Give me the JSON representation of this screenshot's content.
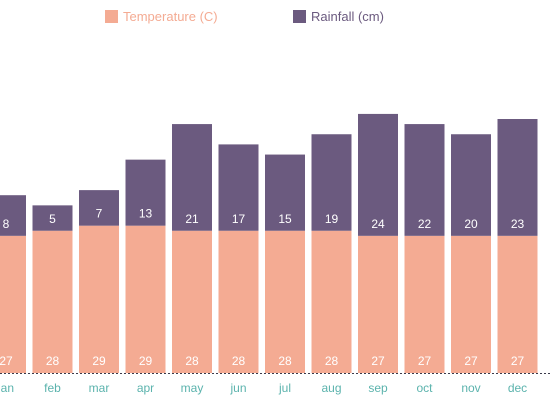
{
  "chart_data": {
    "type": "bar",
    "stacked": true,
    "categories": [
      "jan",
      "feb",
      "mar",
      "apr",
      "may",
      "jun",
      "jul",
      "aug",
      "sep",
      "oct",
      "nov",
      "dec"
    ],
    "series": [
      {
        "name": "Temperature (C)",
        "values": [
          27,
          28,
          29,
          29,
          28,
          28,
          28,
          28,
          27,
          27,
          27,
          27
        ],
        "color": "#f4ab93",
        "legend_text_color": "#f4ab93"
      },
      {
        "name": "Rainfall (cm)",
        "values": [
          8,
          5,
          7,
          13,
          21,
          17,
          15,
          19,
          24,
          22,
          20,
          23
        ],
        "color": "#6b5a7f",
        "legend_text_color": "#6b5a7f"
      }
    ],
    "title": "",
    "xlabel": "",
    "ylabel": "",
    "ylim": [
      0,
      52
    ],
    "grid": false,
    "legend": "top",
    "data_labels": true,
    "tick_label_color": "#5bb3ad",
    "baseline_color": "#3a3a4a"
  }
}
